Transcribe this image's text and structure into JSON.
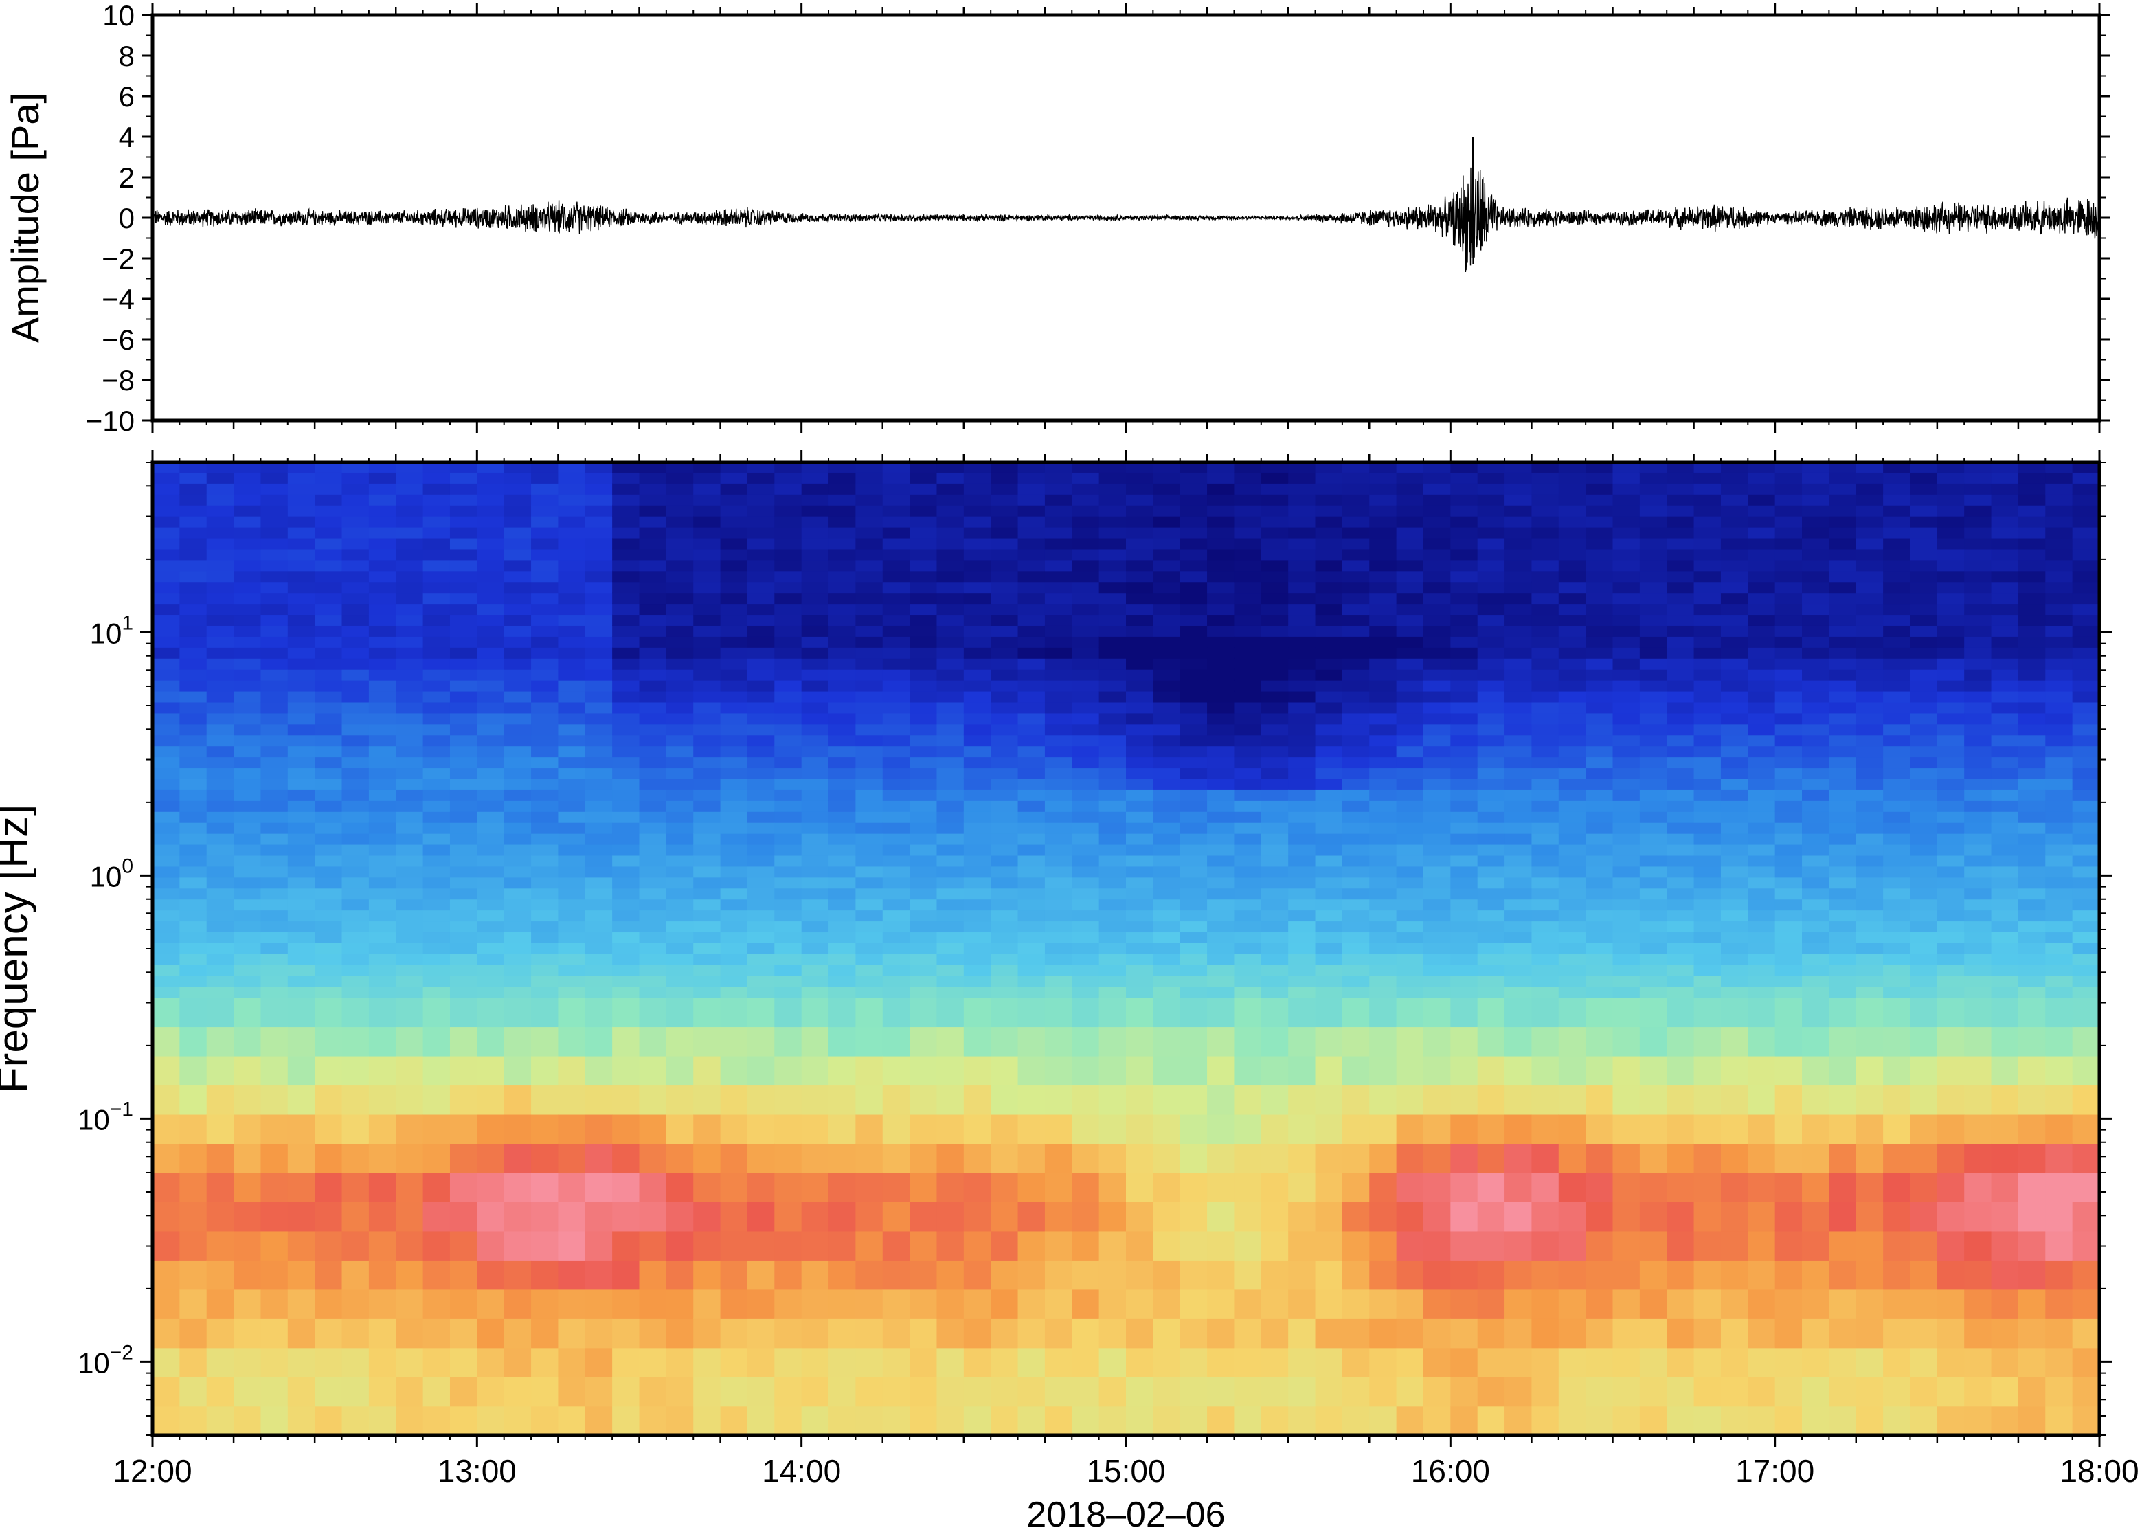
{
  "chart_data": [
    {
      "type": "line",
      "panel": "waveform",
      "ylabel": "Amplitude [Pa]",
      "ylim": [
        -10,
        10
      ],
      "y_ticks": [
        -10,
        -8,
        -6,
        -4,
        -2,
        0,
        2,
        4,
        6,
        8,
        10
      ],
      "x_ticks": [
        "12:00",
        "13:00",
        "14:00",
        "15:00",
        "16:00",
        "17:00",
        "18:00"
      ],
      "xlim": [
        "2018-02-06 12:00",
        "2018-02-06 18:00"
      ],
      "series": [
        {
          "values_envelope_hours": [
            [
              12.0,
              0.5
            ],
            [
              12.25,
              0.5
            ],
            [
              12.5,
              0.45
            ],
            [
              12.75,
              0.4
            ],
            [
              13.0,
              0.6
            ],
            [
              13.15,
              0.8
            ],
            [
              13.3,
              1.0
            ],
            [
              13.4,
              0.6
            ],
            [
              13.6,
              0.3
            ],
            [
              13.83,
              0.6
            ],
            [
              14.0,
              0.25
            ],
            [
              14.5,
              0.2
            ],
            [
              15.0,
              0.15
            ],
            [
              15.5,
              0.1
            ],
            [
              15.85,
              0.6
            ],
            [
              16.0,
              1.1
            ],
            [
              16.07,
              4.0
            ],
            [
              16.15,
              0.6
            ],
            [
              16.5,
              0.35
            ],
            [
              16.85,
              0.8
            ],
            [
              17.0,
              0.3
            ],
            [
              17.5,
              0.9
            ],
            [
              17.75,
              0.8
            ],
            [
              18.0,
              1.3
            ]
          ]
        }
      ],
      "grid": false
    },
    {
      "type": "heatmap",
      "panel": "spectrogram",
      "ylabel": "Frequency [Hz]",
      "xlabel": "2018–02–06",
      "y_scale": "log",
      "ylim": [
        0.005,
        50
      ],
      "y_ticks": [
        0.01,
        0.1,
        1,
        10
      ],
      "x_ticks": [
        "12:00",
        "13:00",
        "14:00",
        "15:00",
        "16:00",
        "17:00",
        "18:00"
      ],
      "colormap": "jet",
      "colormap_stops": [
        "#0a0a78",
        "#1b35d8",
        "#2f8ce8",
        "#55c9ec",
        "#8ee7c0",
        "#d7ec8e",
        "#f6d46a",
        "#f69a45",
        "#ec5a4e",
        "#f7909e"
      ],
      "energy_peaks": [
        {
          "time": "13:15",
          "frequency_hz": 0.04
        },
        {
          "time": "16:05",
          "frequency_hz": 0.035
        },
        {
          "time": "17:50",
          "frequency_hz": 0.04
        }
      ],
      "grid": false
    }
  ],
  "axes": {
    "amplitude_label": "Amplitude [Pa]",
    "frequency_label": "Frequency [Hz]",
    "date_label": "2018–02–06",
    "x_tick_labels": [
      "12:00",
      "13:00",
      "14:00",
      "15:00",
      "16:00",
      "17:00",
      "18:00"
    ],
    "amp_tick_labels": [
      "−10",
      "−8",
      "−6",
      "−4",
      "−2",
      "0",
      "2",
      "4",
      "6",
      "8",
      "10"
    ],
    "freq_tick_labels": [
      {
        "base": "10",
        "exp": "−2"
      },
      {
        "base": "10",
        "exp": "−1"
      },
      {
        "base": "10",
        "exp": "0"
      },
      {
        "base": "10",
        "exp": "1"
      }
    ]
  }
}
